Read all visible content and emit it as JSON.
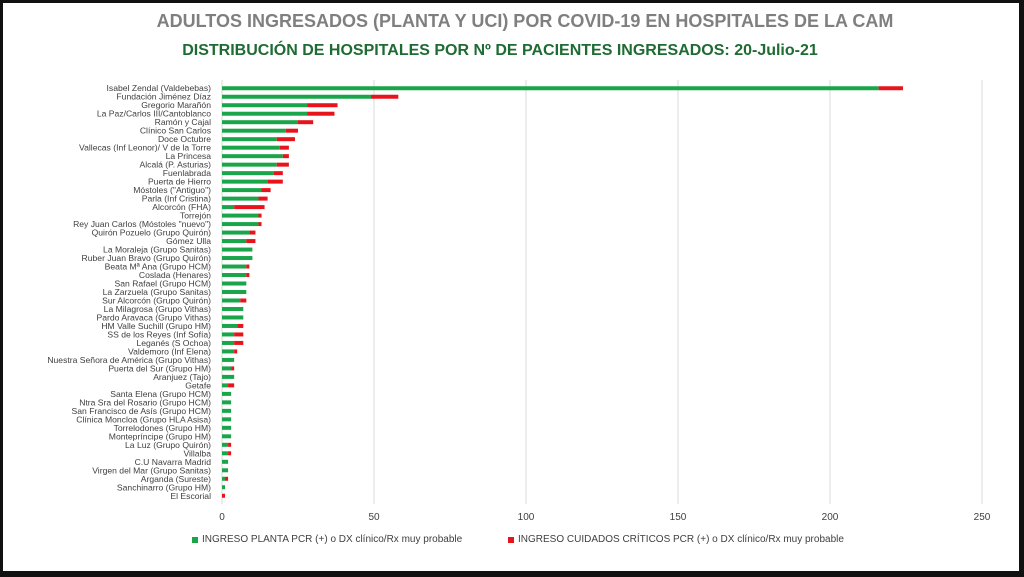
{
  "chart_data": {
    "type": "bar",
    "orientation": "horizontal",
    "stacked": true,
    "title": "ADULTOS INGRESADOS (PLANTA Y UCI) POR COVID-19 EN HOSPITALES DE LA CAM",
    "subtitle": "DISTRIBUCIÓN DE HOSPITALES POR Nº DE PACIENTES INGRESADOS: 20-Julio-21",
    "xlim": [
      0,
      250
    ],
    "xticks": [
      0,
      50,
      100,
      150,
      200,
      250
    ],
    "grid": "vertical",
    "legend_position": "bottom",
    "categories": [
      "Isabel Zendal (Valdebebas)",
      "Fundación Jiménez Díaz",
      "Gregorio Marañón",
      "La Paz/Carlos III/Cantoblanco",
      "Ramón y Cajal",
      "Clínico San Carlos",
      "Doce Octubre",
      "Vallecas (Inf Leonor)/ V de la Torre",
      "La Princesa",
      "Alcalá (P. Asturias)",
      "Fuenlabrada",
      "Puerta de Hierro",
      "Móstoles (\"Antiguo\")",
      "Parla (Inf Cristina)",
      "Alcorcón (FHA)",
      "Torrejón",
      "Rey Juan Carlos (Móstoles \"nuevo\")",
      "Quirón Pozuelo (Grupo Quirón)",
      "Gómez Ulla",
      "La Moraleja (Grupo Sanitas)",
      "Ruber Juan Bravo (Grupo Quirón)",
      "Beata Mª Ana (Grupo HCM)",
      "Coslada (Henares)",
      "San Rafael (Grupo HCM)",
      "La Zarzuela (Grupo Sanitas)",
      "Sur Alcorcón (Grupo Quirón)",
      "La Milagrosa (Grupo Vithas)",
      "Pardo Aravaca (Grupo Vithas)",
      "HM Valle Suchill (Grupo HM)",
      "SS de los Reyes (Inf Sofía)",
      "Leganés (S Ochoa)",
      "Valdemoro (Inf Elena)",
      "Nuestra Señora de América (Grupo Vithas)",
      "Puerta del Sur (Grupo HM)",
      "Aranjuez (Tajo)",
      "Getafe",
      "Santa Elena (Grupo HCM)",
      "Ntra Sra del Rosario (Grupo HCM)",
      "San Francisco de Asís (Grupo HCM)",
      "Clínica Moncloa (Grupo HLA Asisa)",
      "Torrelodones (Grupo HM)",
      "Montepríncipe (Grupo HM)",
      "La Luz (Grupo Quirón)",
      "Villalba",
      "C.U Navarra Madrid",
      "Virgen del Mar (Grupo Sanitas)",
      "Arganda (Sureste)",
      "Sanchinarro (Grupo HM)",
      "El Escorial"
    ],
    "series": [
      {
        "name": "INGRESO PLANTA PCR (+) o DX clínico/Rx muy probable",
        "color": "#1aa54a",
        "values": [
          216,
          49,
          28,
          28,
          25,
          21,
          18,
          19,
          20,
          18,
          17,
          15,
          13,
          12,
          4,
          12,
          12,
          9,
          8,
          10,
          10,
          8,
          8,
          8,
          8,
          6,
          7,
          7,
          5,
          4,
          4,
          4,
          4,
          3,
          4,
          2,
          3,
          3,
          3,
          3,
          3,
          3,
          2,
          2,
          2,
          2,
          1,
          1,
          0
        ]
      },
      {
        "name": "INGRESO CUIDADOS CRÍTICOS PCR (+) o DX clínico/Rx muy probable",
        "color": "#e8141b",
        "values": [
          8,
          9,
          10,
          9,
          5,
          4,
          6,
          3,
          2,
          4,
          3,
          5,
          3,
          3,
          10,
          1,
          1,
          2,
          3,
          0,
          0,
          1,
          1,
          0,
          0,
          2,
          0,
          0,
          2,
          3,
          3,
          1,
          0,
          1,
          0,
          2,
          0,
          0,
          0,
          0,
          0,
          0,
          1,
          1,
          0,
          0,
          1,
          0,
          1
        ]
      }
    ]
  }
}
